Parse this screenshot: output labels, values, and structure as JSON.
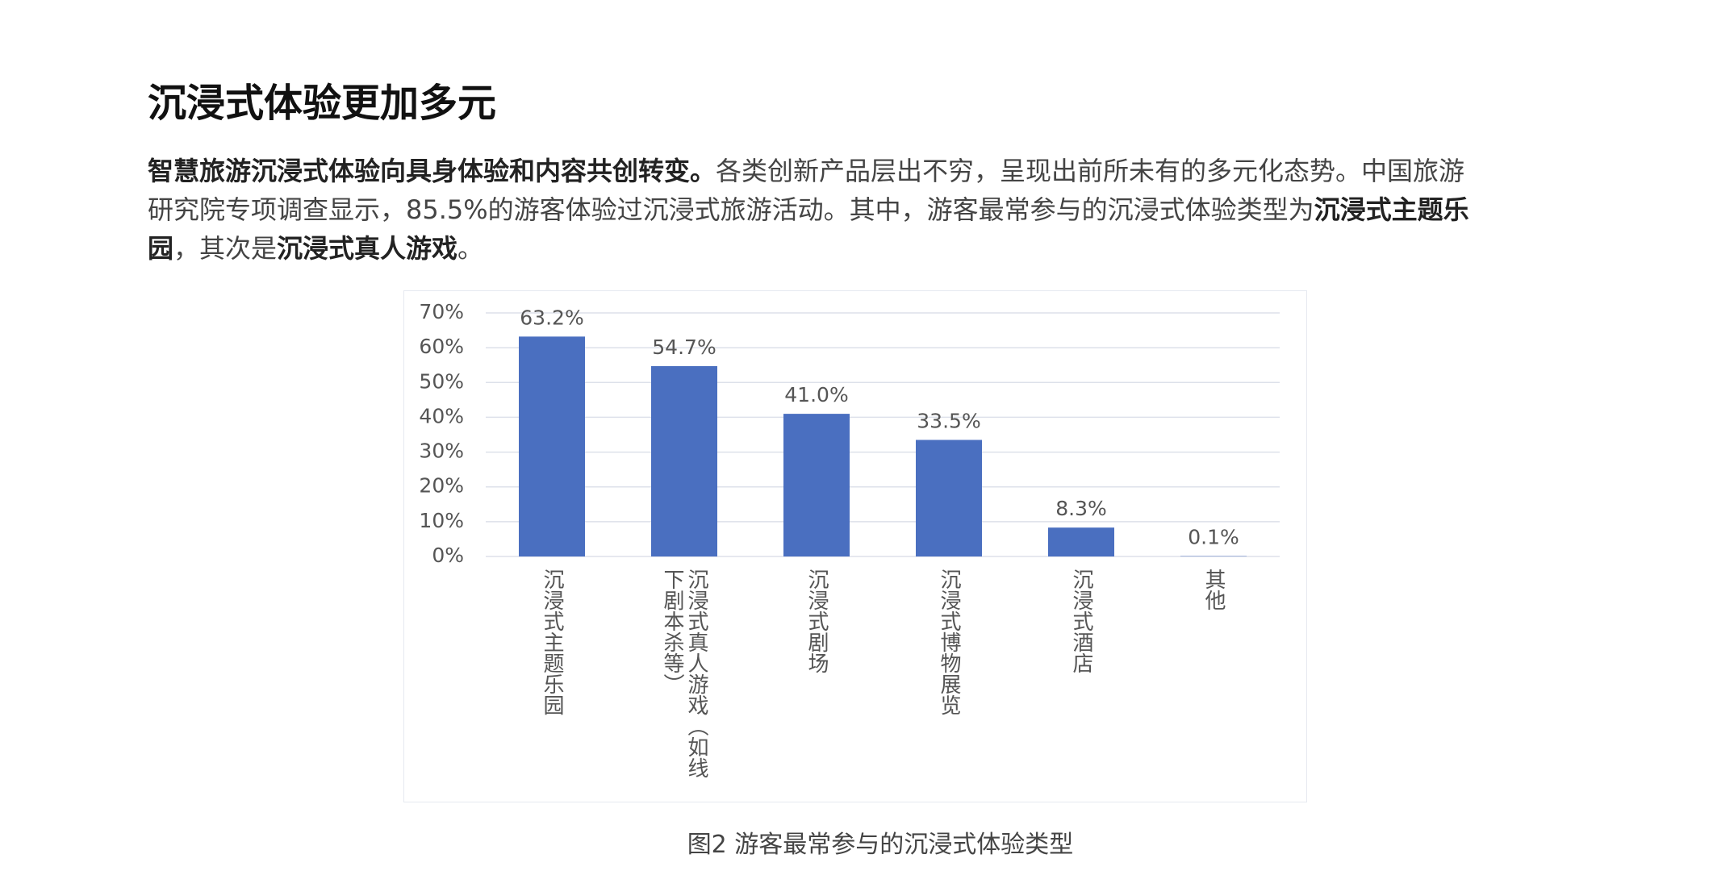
{
  "heading": "沉浸式体验更加多元",
  "paragraph": [
    {
      "text": "智慧旅游沉浸式体验向具身体验和内容共创转变。",
      "bold": true
    },
    {
      "text": "各类创新产品层出不穷，呈现出前所未有的多元化态势。中国旅游研究院专项调查显示，85.5%的游客体验过沉浸式旅游活动。其中，游客最常参与的沉浸式体验类型为",
      "bold": false
    },
    {
      "text": "沉浸式主题乐园",
      "bold": true
    },
    {
      "text": "，其次是",
      "bold": false
    },
    {
      "text": "沉浸式真人游戏",
      "bold": true
    },
    {
      "text": "。",
      "bold": false
    }
  ],
  "chart_data": {
    "type": "bar",
    "categories": [
      "沉浸式主题乐园",
      "沉浸式真人游戏（如线下剧本杀等）",
      "沉浸式剧场",
      "沉浸式博物展览",
      "沉浸式酒店",
      "其他"
    ],
    "values": [
      63.2,
      54.7,
      41.0,
      33.5,
      8.3,
      0.1
    ],
    "value_labels": [
      "63.2%",
      "54.7%",
      "41.0%",
      "33.5%",
      "8.3%",
      "0.1%"
    ],
    "color": "#4a6fc0",
    "ylim": [
      0,
      70
    ],
    "yticks": [
      {
        "value": 0,
        "label": "0%"
      },
      {
        "value": 10,
        "label": "10%"
      },
      {
        "value": 20,
        "label": "20%"
      },
      {
        "value": 30,
        "label": "30%"
      },
      {
        "value": 40,
        "label": "40%"
      },
      {
        "value": 50,
        "label": "50%"
      },
      {
        "value": 60,
        "label": "60%"
      },
      {
        "value": 70,
        "label": "70%"
      }
    ],
    "grid": true
  },
  "caption": "图2  游客最常参与的沉浸式体验类型"
}
